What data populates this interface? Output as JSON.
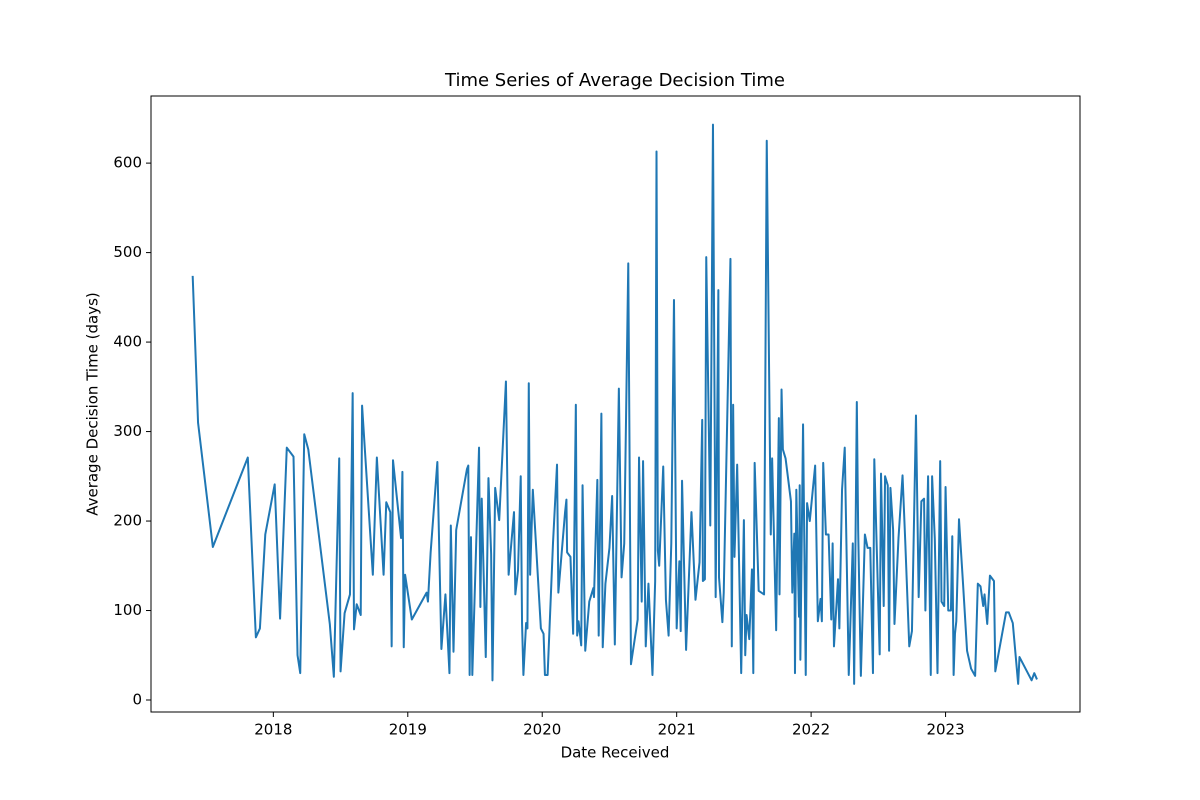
{
  "chart_data": {
    "type": "line",
    "title": "Time Series of Average Decision Time",
    "xlabel": "Date Received",
    "ylabel": "Average Decision Time (days)",
    "color": "#1f77b4",
    "xlim": [
      2017.09,
      2024.0
    ],
    "ylim": [
      -13.4,
      675
    ],
    "xticks": [
      2018,
      2019,
      2020,
      2021,
      2022,
      2023
    ],
    "yticks": [
      0,
      100,
      200,
      300,
      400,
      500,
      600
    ],
    "x": [
      2017.4,
      2017.44,
      2017.55,
      2017.81,
      2017.87,
      2017.9,
      2017.94,
      2018.01,
      2018.05,
      2018.1,
      2018.15,
      2018.18,
      2018.2,
      2018.23,
      2018.26,
      2018.42,
      2018.45,
      2018.49,
      2018.5,
      2018.53,
      2018.57,
      2018.59,
      2018.6,
      2018.62,
      2018.65,
      2018.66,
      2018.74,
      2018.77,
      2018.82,
      2018.84,
      2018.87,
      2018.88,
      2018.89,
      2018.95,
      2018.96,
      2018.97,
      2018.98,
      2019.03,
      2019.14,
      2019.15,
      2019.17,
      2019.22,
      2019.25,
      2019.28,
      2019.31,
      2019.32,
      2019.34,
      2019.36,
      2019.44,
      2019.45,
      2019.46,
      2019.47,
      2019.48,
      2019.53,
      2019.54,
      2019.55,
      2019.58,
      2019.6,
      2019.62,
      2019.63,
      2019.65,
      2019.68,
      2019.73,
      2019.75,
      2019.79,
      2019.8,
      2019.82,
      2019.84,
      2019.85,
      2019.86,
      2019.88,
      2019.89,
      2019.9,
      2019.91,
      2019.93,
      2019.99,
      2020.01,
      2020.02,
      2020.04,
      2020.08,
      2020.11,
      2020.12,
      2020.17,
      2020.18,
      2020.185,
      2020.21,
      2020.23,
      2020.25,
      2020.26,
      2020.27,
      2020.29,
      2020.3,
      2020.32,
      2020.35,
      2020.38,
      2020.385,
      2020.41,
      2020.42,
      2020.44,
      2020.45,
      2020.47,
      2020.5,
      2020.52,
      2020.54,
      2020.57,
      2020.59,
      2020.61,
      2020.64,
      2020.66,
      2020.71,
      2020.72,
      2020.74,
      2020.75,
      2020.77,
      2020.79,
      2020.82,
      2020.84,
      2020.85,
      2020.86,
      2020.87,
      2020.9,
      2020.92,
      2020.94,
      2020.96,
      2020.98,
      2021.0,
      2021.02,
      2021.03,
      2021.04,
      2021.07,
      2021.11,
      2021.14,
      2021.17,
      2021.19,
      2021.195,
      2021.21,
      2021.22,
      2021.25,
      2021.27,
      2021.29,
      2021.31,
      2021.315,
      2021.34,
      2021.35,
      2021.4,
      2021.41,
      2021.42,
      2021.43,
      2021.45,
      2021.48,
      2021.5,
      2021.51,
      2021.52,
      2021.54,
      2021.56,
      2021.57,
      2021.58,
      2021.61,
      2021.65,
      2021.67,
      2021.7,
      2021.71,
      2021.74,
      2021.76,
      2021.765,
      2021.78,
      2021.79,
      2021.81,
      2021.85,
      2021.86,
      2021.875,
      2021.88,
      2021.89,
      2021.91,
      2021.915,
      2021.92,
      2021.94,
      2021.96,
      2021.97,
      2021.99,
      2022.03,
      2022.05,
      2022.07,
      2022.08,
      2022.09,
      2022.11,
      2022.13,
      2022.15,
      2022.16,
      2022.17,
      2022.2,
      2022.21,
      2022.23,
      2022.25,
      2022.28,
      2022.29,
      2022.31,
      2022.32,
      2022.34,
      2022.35,
      2022.37,
      2022.4,
      2022.42,
      2022.44,
      2022.46,
      2022.47,
      2022.51,
      2022.52,
      2022.54,
      2022.55,
      2022.57,
      2022.58,
      2022.59,
      2022.61,
      2022.62,
      2022.65,
      2022.68,
      2022.7,
      2022.73,
      2022.75,
      2022.78,
      2022.8,
      2022.82,
      2022.84,
      2022.85,
      2022.87,
      2022.89,
      2022.9,
      2022.92,
      2022.94,
      2022.96,
      2022.97,
      2022.99,
      2023.0,
      2023.02,
      2023.04,
      2023.05,
      2023.06,
      2023.07,
      2023.08,
      2023.1,
      2023.13,
      2023.16,
      2023.19,
      2023.22,
      2023.24,
      2023.26,
      2023.28,
      2023.29,
      2023.31,
      2023.33,
      2023.36,
      2023.37,
      2023.45,
      2023.47,
      2023.5,
      2023.54,
      2023.55,
      2023.64,
      2023.66,
      2023.68
    ],
    "values": [
      474,
      310,
      171,
      271,
      70,
      80,
      185,
      241,
      91,
      282,
      272,
      50,
      30,
      297,
      280,
      85,
      26,
      270,
      32,
      97,
      118,
      343,
      79,
      107,
      95,
      329,
      140,
      271,
      140,
      221,
      210,
      60,
      268,
      181,
      255,
      59,
      140,
      90,
      120,
      110,
      165,
      266,
      57,
      118,
      30,
      195,
      54,
      190,
      258,
      262,
      28,
      182,
      28,
      282,
      104,
      225,
      48,
      248,
      163,
      22,
      237,
      201,
      356,
      140,
      210,
      118,
      145,
      250,
      85,
      28,
      86,
      80,
      354,
      140,
      235,
      80,
      74,
      28,
      28,
      175,
      263,
      120,
      210,
      224,
      165,
      160,
      74,
      330,
      72,
      88,
      61,
      240,
      55,
      110,
      125,
      115,
      246,
      72,
      320,
      59,
      130,
      170,
      228,
      62,
      348,
      137,
      175,
      488,
      40,
      90,
      271,
      110,
      267,
      60,
      130,
      28,
      133,
      613,
      167,
      150,
      261,
      112,
      72,
      175,
      447,
      80,
      155,
      77,
      245,
      56,
      210,
      112,
      154,
      313,
      133,
      135,
      495,
      195,
      643,
      115,
      458,
      137,
      87,
      120,
      493,
      60,
      330,
      160,
      263,
      30,
      201,
      50,
      95,
      68,
      146,
      30,
      265,
      122,
      118,
      625,
      185,
      270,
      78,
      315,
      118,
      347,
      280,
      270,
      222,
      120,
      186,
      30,
      235,
      93,
      240,
      45,
      308,
      28,
      220,
      200,
      262,
      88,
      113,
      88,
      265,
      185,
      185,
      90,
      175,
      60,
      135,
      80,
      235,
      282,
      28,
      75,
      175,
      18,
      333,
      190,
      27,
      185,
      170,
      170,
      30,
      269,
      51,
      253,
      105,
      250,
      240,
      55,
      237,
      190,
      85,
      181,
      251,
      178,
      60,
      77,
      318,
      115,
      222,
      225,
      100,
      250,
      28,
      250,
      180,
      30,
      267,
      110,
      105,
      238,
      100,
      100,
      183,
      28,
      74,
      88,
      202,
      130,
      55,
      35,
      27,
      130,
      127,
      105,
      118,
      85,
      139,
      133,
      32,
      98,
      98,
      86,
      18,
      48,
      22,
      30,
      23
    ]
  }
}
